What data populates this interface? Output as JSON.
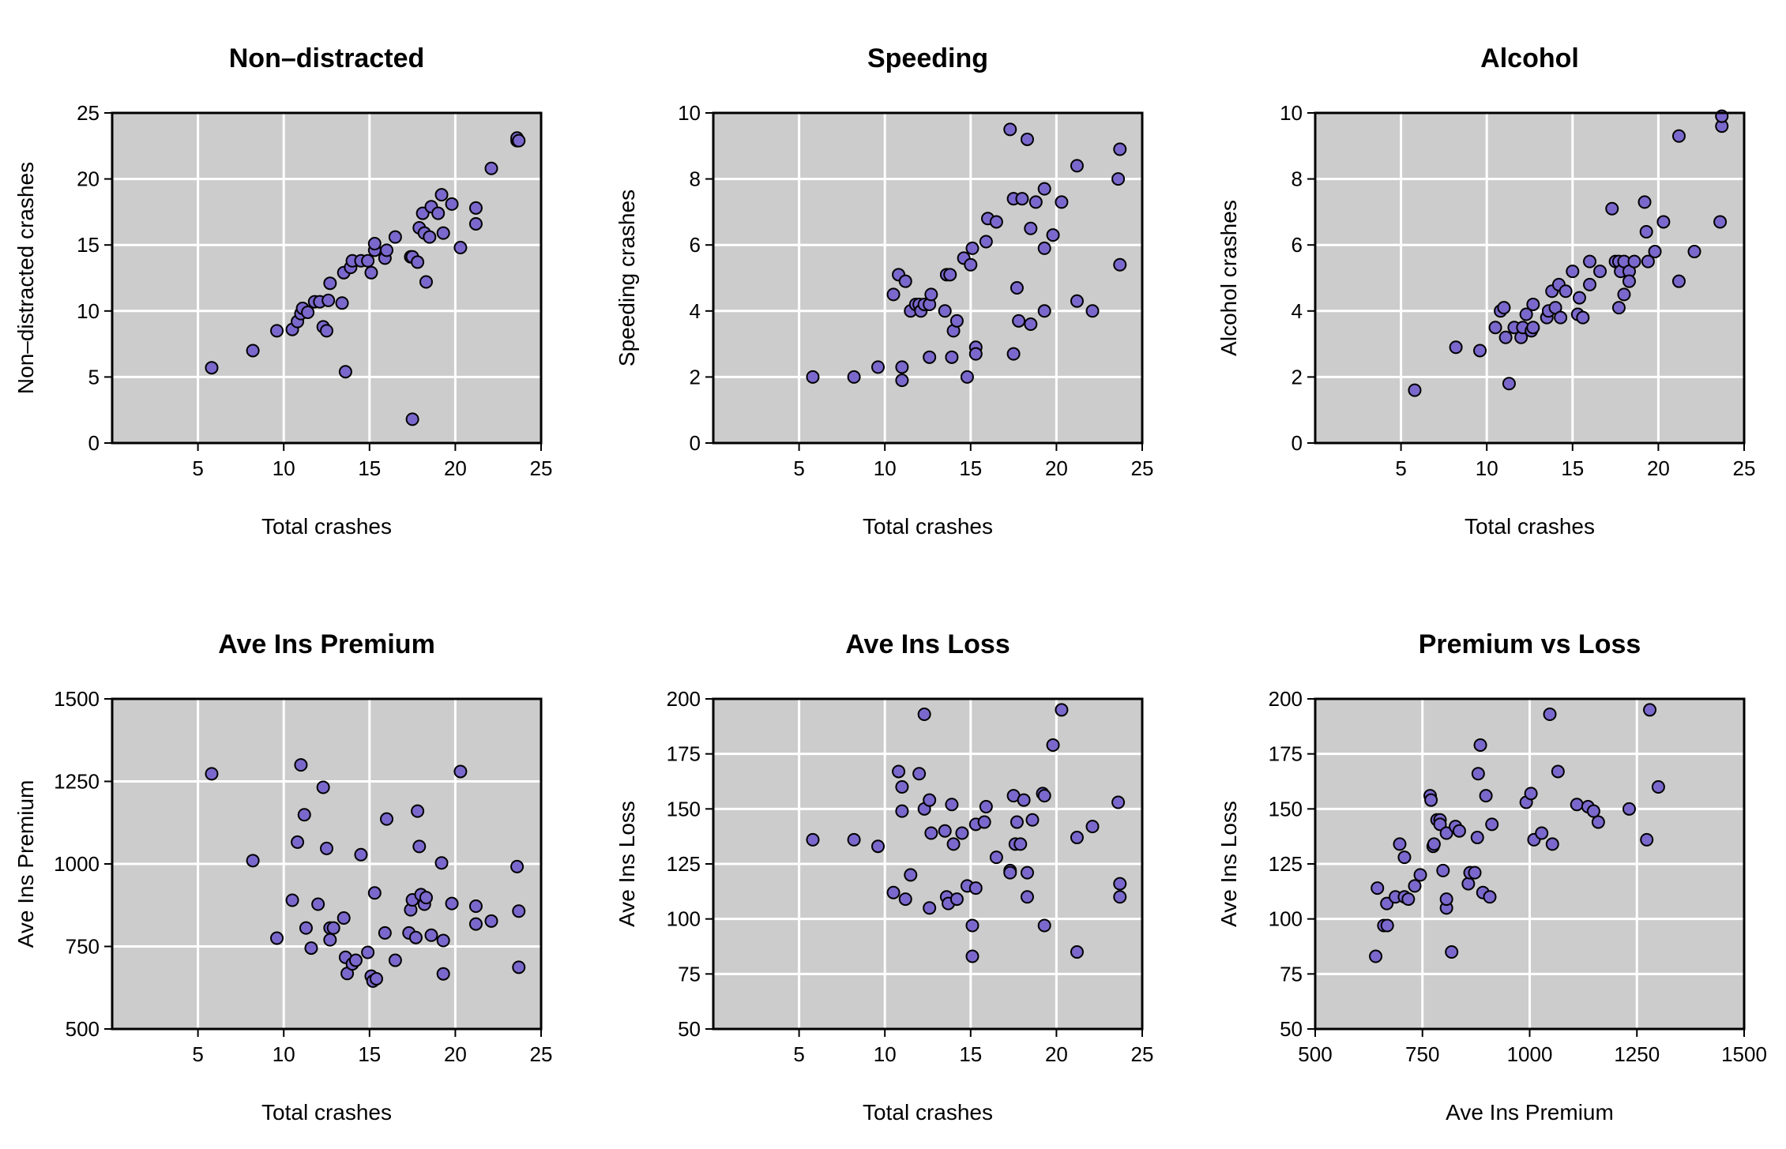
{
  "chart_data": [
    {
      "type": "scatter",
      "title": "Non–distracted",
      "xlabel": "Total crashes",
      "ylabel": "Non–distracted crashes",
      "xlim": [
        0,
        25
      ],
      "ylim": [
        0,
        25
      ],
      "xticks": [
        5,
        10,
        15,
        20,
        25
      ],
      "xtick_labels": [
        "5",
        "10",
        "15",
        "20",
        "25"
      ],
      "yticks": [
        0,
        5,
        10,
        15,
        20,
        25
      ],
      "ytick_labels": [
        "0",
        "5",
        "10",
        "15",
        "20",
        "25"
      ],
      "background": "#cccccc",
      "grid": true,
      "point_color": "#7b68cc",
      "points": [
        [
          5.8,
          5.7
        ],
        [
          8.2,
          7.0
        ],
        [
          9.6,
          8.5
        ],
        [
          10.5,
          8.6
        ],
        [
          10.8,
          9.2
        ],
        [
          11.0,
          9.8
        ],
        [
          11.1,
          10.2
        ],
        [
          11.4,
          9.9
        ],
        [
          11.8,
          10.7
        ],
        [
          12.1,
          10.7
        ],
        [
          12.3,
          8.8
        ],
        [
          12.5,
          8.5
        ],
        [
          12.6,
          10.8
        ],
        [
          12.7,
          12.1
        ],
        [
          13.4,
          10.6
        ],
        [
          13.5,
          12.9
        ],
        [
          13.6,
          5.4
        ],
        [
          13.9,
          13.3
        ],
        [
          14.0,
          13.8
        ],
        [
          14.5,
          13.8
        ],
        [
          14.9,
          13.8
        ],
        [
          15.1,
          12.9
        ],
        [
          15.3,
          14.6
        ],
        [
          15.3,
          15.1
        ],
        [
          15.9,
          14.0
        ],
        [
          16.0,
          14.6
        ],
        [
          16.5,
          15.6
        ],
        [
          17.4,
          14.1
        ],
        [
          17.5,
          14.1
        ],
        [
          17.5,
          1.8
        ],
        [
          17.8,
          13.7
        ],
        [
          17.9,
          16.3
        ],
        [
          18.1,
          17.4
        ],
        [
          18.2,
          15.9
        ],
        [
          18.3,
          12.2
        ],
        [
          18.5,
          15.6
        ],
        [
          18.6,
          17.9
        ],
        [
          19.0,
          17.4
        ],
        [
          19.2,
          18.8
        ],
        [
          19.3,
          15.9
        ],
        [
          19.8,
          18.1
        ],
        [
          20.3,
          14.8
        ],
        [
          21.2,
          16.6
        ],
        [
          21.2,
          17.8
        ],
        [
          22.1,
          20.8
        ],
        [
          23.6,
          22.9
        ],
        [
          23.6,
          23.1
        ],
        [
          23.7,
          22.9
        ]
      ]
    },
    {
      "type": "scatter",
      "title": "Speeding",
      "xlabel": "Total crashes",
      "ylabel": "Speeding crashes",
      "xlim": [
        0,
        25
      ],
      "ylim": [
        0,
        10
      ],
      "xticks": [
        5,
        10,
        15,
        20,
        25
      ],
      "xtick_labels": [
        "5",
        "10",
        "15",
        "20",
        "25"
      ],
      "yticks": [
        0,
        2,
        4,
        6,
        8,
        10
      ],
      "ytick_labels": [
        "0",
        "2",
        "4",
        "6",
        "8",
        "10"
      ],
      "background": "#cccccc",
      "grid": true,
      "point_color": "#7b68cc",
      "points": [
        [
          5.8,
          2.0
        ],
        [
          8.2,
          2.0
        ],
        [
          9.6,
          2.3
        ],
        [
          10.5,
          4.5
        ],
        [
          10.8,
          5.1
        ],
        [
          11.0,
          1.9
        ],
        [
          11.0,
          2.3
        ],
        [
          11.2,
          4.9
        ],
        [
          11.5,
          4.0
        ],
        [
          11.8,
          4.2
        ],
        [
          12.0,
          4.2
        ],
        [
          12.1,
          4.0
        ],
        [
          12.3,
          4.2
        ],
        [
          12.6,
          4.2
        ],
        [
          12.6,
          2.6
        ],
        [
          12.7,
          4.5
        ],
        [
          13.5,
          4.0
        ],
        [
          13.6,
          5.1
        ],
        [
          13.8,
          5.1
        ],
        [
          13.9,
          2.6
        ],
        [
          14.0,
          3.4
        ],
        [
          14.2,
          3.7
        ],
        [
          14.6,
          5.6
        ],
        [
          14.8,
          2.0
        ],
        [
          15.0,
          5.4
        ],
        [
          15.1,
          5.9
        ],
        [
          15.3,
          2.9
        ],
        [
          15.3,
          2.7
        ],
        [
          15.9,
          6.1
        ],
        [
          16.0,
          6.8
        ],
        [
          16.5,
          6.7
        ],
        [
          17.3,
          9.5
        ],
        [
          17.5,
          7.4
        ],
        [
          17.5,
          2.7
        ],
        [
          17.7,
          4.7
        ],
        [
          17.8,
          3.7
        ],
        [
          18.0,
          7.4
        ],
        [
          18.3,
          9.2
        ],
        [
          18.5,
          6.5
        ],
        [
          18.5,
          3.6
        ],
        [
          18.8,
          7.3
        ],
        [
          19.3,
          5.9
        ],
        [
          19.3,
          4.0
        ],
        [
          19.3,
          7.7
        ],
        [
          19.8,
          6.3
        ],
        [
          20.3,
          7.3
        ],
        [
          21.2,
          8.4
        ],
        [
          21.2,
          4.3
        ],
        [
          22.1,
          4.0
        ],
        [
          23.6,
          8.0
        ],
        [
          23.7,
          8.9
        ],
        [
          23.7,
          5.4
        ]
      ]
    },
    {
      "type": "scatter",
      "title": "Alcohol",
      "xlabel": "Total crashes",
      "ylabel": "Alcohol crashes",
      "xlim": [
        0,
        25
      ],
      "ylim": [
        0,
        10
      ],
      "xticks": [
        5,
        10,
        15,
        20,
        25
      ],
      "xtick_labels": [
        "5",
        "10",
        "15",
        "20",
        "25"
      ],
      "yticks": [
        0,
        2,
        4,
        6,
        8,
        10
      ],
      "ytick_labels": [
        "0",
        "2",
        "4",
        "6",
        "8",
        "10"
      ],
      "background": "#cccccc",
      "grid": true,
      "point_color": "#7b68cc",
      "points": [
        [
          5.8,
          1.6
        ],
        [
          8.2,
          2.9
        ],
        [
          9.6,
          2.8
        ],
        [
          10.5,
          3.5
        ],
        [
          10.8,
          4.0
        ],
        [
          11.0,
          4.1
        ],
        [
          11.1,
          3.2
        ],
        [
          11.3,
          1.8
        ],
        [
          11.6,
          3.5
        ],
        [
          12.0,
          3.2
        ],
        [
          12.1,
          3.5
        ],
        [
          12.3,
          3.9
        ],
        [
          12.6,
          3.4
        ],
        [
          12.7,
          4.2
        ],
        [
          12.7,
          3.5
        ],
        [
          13.5,
          3.8
        ],
        [
          13.6,
          4.0
        ],
        [
          13.8,
          4.6
        ],
        [
          14.0,
          4.1
        ],
        [
          14.2,
          4.8
        ],
        [
          14.3,
          3.8
        ],
        [
          14.6,
          4.6
        ],
        [
          15.0,
          5.2
        ],
        [
          15.3,
          3.9
        ],
        [
          15.4,
          4.4
        ],
        [
          15.6,
          3.8
        ],
        [
          16.0,
          5.5
        ],
        [
          16.0,
          4.8
        ],
        [
          16.6,
          5.2
        ],
        [
          17.3,
          7.1
        ],
        [
          17.5,
          5.5
        ],
        [
          17.7,
          5.5
        ],
        [
          17.7,
          4.1
        ],
        [
          17.8,
          5.2
        ],
        [
          18.0,
          4.5
        ],
        [
          18.0,
          5.5
        ],
        [
          18.3,
          5.2
        ],
        [
          18.3,
          4.9
        ],
        [
          18.6,
          5.5
        ],
        [
          19.2,
          7.3
        ],
        [
          19.3,
          6.4
        ],
        [
          19.4,
          5.5
        ],
        [
          19.8,
          5.8
        ],
        [
          20.3,
          6.7
        ],
        [
          21.2,
          9.3
        ],
        [
          21.2,
          4.9
        ],
        [
          22.1,
          5.8
        ],
        [
          23.6,
          6.7
        ],
        [
          23.7,
          9.6
        ],
        [
          23.7,
          9.9
        ]
      ]
    },
    {
      "type": "scatter",
      "title": "Ave Ins Premium",
      "xlabel": "Total crashes",
      "ylabel": "Ave Ins Premium",
      "xlim": [
        0,
        25
      ],
      "ylim": [
        500,
        1500
      ],
      "xticks": [
        5,
        10,
        15,
        20,
        25
      ],
      "xtick_labels": [
        "5",
        "10",
        "15",
        "20",
        "25"
      ],
      "yticks": [
        500,
        750,
        1000,
        1250,
        1500
      ],
      "ytick_labels": [
        "500",
        "750",
        "1000",
        "1250",
        "1500"
      ],
      "background": "#cccccc",
      "grid": true,
      "point_color": "#7b68cc",
      "points": [
        [
          5.8,
          1273
        ],
        [
          8.2,
          1010
        ],
        [
          9.6,
          775
        ],
        [
          10.5,
          890
        ],
        [
          10.8,
          1066
        ],
        [
          11.0,
          1300
        ],
        [
          11.2,
          1149
        ],
        [
          11.3,
          806
        ],
        [
          11.6,
          745
        ],
        [
          12.0,
          878
        ],
        [
          12.3,
          1232
        ],
        [
          12.5,
          1047
        ],
        [
          12.7,
          806
        ],
        [
          12.7,
          770
        ],
        [
          12.9,
          806
        ],
        [
          13.5,
          836
        ],
        [
          13.6,
          717
        ],
        [
          13.7,
          668
        ],
        [
          14.0,
          697
        ],
        [
          14.2,
          708
        ],
        [
          14.5,
          1028
        ],
        [
          14.9,
          732
        ],
        [
          15.1,
          660
        ],
        [
          15.2,
          645
        ],
        [
          15.3,
          912
        ],
        [
          15.4,
          652
        ],
        [
          15.9,
          791
        ],
        [
          16.0,
          1136
        ],
        [
          16.5,
          708
        ],
        [
          17.3,
          791
        ],
        [
          17.4,
          861
        ],
        [
          17.5,
          891
        ],
        [
          17.7,
          777
        ],
        [
          17.8,
          1160
        ],
        [
          17.9,
          1053
        ],
        [
          18.0,
          907
        ],
        [
          18.2,
          878
        ],
        [
          18.3,
          898
        ],
        [
          18.6,
          784
        ],
        [
          19.2,
          1003
        ],
        [
          19.3,
          667
        ],
        [
          19.3,
          768
        ],
        [
          19.8,
          880
        ],
        [
          20.3,
          1280
        ],
        [
          21.2,
          818
        ],
        [
          21.2,
          872
        ],
        [
          22.1,
          827
        ],
        [
          23.6,
          992
        ],
        [
          23.7,
          687
        ],
        [
          23.7,
          857
        ]
      ]
    },
    {
      "type": "scatter",
      "title": "Ave Ins Loss",
      "xlabel": "Total crashes",
      "ylabel": "Ave Ins Loss",
      "xlim": [
        0,
        25
      ],
      "ylim": [
        50,
        200
      ],
      "xticks": [
        5,
        10,
        15,
        20,
        25
      ],
      "xtick_labels": [
        "5",
        "10",
        "15",
        "20",
        "25"
      ],
      "yticks": [
        50,
        75,
        100,
        125,
        150,
        175,
        200
      ],
      "ytick_labels": [
        "50",
        "75",
        "100",
        "125",
        "150",
        "175",
        "200"
      ],
      "background": "#cccccc",
      "grid": true,
      "point_color": "#7b68cc",
      "points": [
        [
          5.8,
          136
        ],
        [
          8.2,
          136
        ],
        [
          9.6,
          133
        ],
        [
          10.5,
          112
        ],
        [
          10.8,
          167
        ],
        [
          11.0,
          160
        ],
        [
          11.0,
          149
        ],
        [
          11.2,
          109
        ],
        [
          11.5,
          120
        ],
        [
          12.0,
          166
        ],
        [
          12.3,
          150
        ],
        [
          12.3,
          193
        ],
        [
          12.6,
          154
        ],
        [
          12.6,
          105
        ],
        [
          12.7,
          139
        ],
        [
          13.5,
          140
        ],
        [
          13.6,
          110
        ],
        [
          13.7,
          107
        ],
        [
          13.9,
          152
        ],
        [
          14.0,
          134
        ],
        [
          14.2,
          109
        ],
        [
          14.5,
          139
        ],
        [
          14.8,
          115
        ],
        [
          15.1,
          97
        ],
        [
          15.1,
          83
        ],
        [
          15.3,
          143
        ],
        [
          15.3,
          114
        ],
        [
          15.8,
          144
        ],
        [
          15.9,
          151
        ],
        [
          16.5,
          128
        ],
        [
          17.3,
          122
        ],
        [
          17.3,
          121
        ],
        [
          17.5,
          156
        ],
        [
          17.6,
          134
        ],
        [
          17.7,
          144
        ],
        [
          17.9,
          134
        ],
        [
          18.1,
          154
        ],
        [
          18.3,
          110
        ],
        [
          18.3,
          121
        ],
        [
          18.6,
          145
        ],
        [
          19.2,
          157
        ],
        [
          19.3,
          97
        ],
        [
          19.3,
          156
        ],
        [
          19.8,
          179
        ],
        [
          20.3,
          195
        ],
        [
          21.2,
          85
        ],
        [
          21.2,
          137
        ],
        [
          22.1,
          142
        ],
        [
          23.6,
          153
        ],
        [
          23.7,
          116
        ],
        [
          23.7,
          110
        ]
      ]
    },
    {
      "type": "scatter",
      "title": "Premium vs Loss",
      "xlabel": "Ave Ins Premium",
      "ylabel": "Ave Ins Loss",
      "xlim": [
        500,
        1500
      ],
      "ylim": [
        50,
        200
      ],
      "xticks": [
        500,
        750,
        1000,
        1250,
        1500
      ],
      "xtick_labels": [
        "500",
        "750",
        "1000",
        "1250",
        "1500"
      ],
      "yticks": [
        50,
        75,
        100,
        125,
        150,
        175,
        200
      ],
      "ytick_labels": [
        "50",
        "75",
        "100",
        "125",
        "150",
        "175",
        "200"
      ],
      "background": "#cccccc",
      "grid": true,
      "point_color": "#7b68cc",
      "points": [
        [
          641,
          83
        ],
        [
          645,
          114
        ],
        [
          660,
          97
        ],
        [
          667,
          107
        ],
        [
          668,
          97
        ],
        [
          687,
          110
        ],
        [
          697,
          134
        ],
        [
          708,
          128
        ],
        [
          708,
          110
        ],
        [
          717,
          109
        ],
        [
          732,
          115
        ],
        [
          745,
          120
        ],
        [
          768,
          156
        ],
        [
          770,
          154
        ],
        [
          775,
          133
        ],
        [
          777,
          134
        ],
        [
          784,
          145
        ],
        [
          791,
          145
        ],
        [
          791,
          143
        ],
        [
          798,
          122
        ],
        [
          806,
          139
        ],
        [
          806,
          105
        ],
        [
          806,
          109
        ],
        [
          818,
          85
        ],
        [
          827,
          142
        ],
        [
          836,
          140
        ],
        [
          857,
          116
        ],
        [
          861,
          121
        ],
        [
          872,
          121
        ],
        [
          878,
          137
        ],
        [
          880,
          166
        ],
        [
          885,
          179
        ],
        [
          891,
          112
        ],
        [
          898,
          156
        ],
        [
          907,
          110
        ],
        [
          912,
          143
        ],
        [
          992,
          153
        ],
        [
          1003,
          157
        ],
        [
          1010,
          136
        ],
        [
          1028,
          139
        ],
        [
          1047,
          193
        ],
        [
          1053,
          134
        ],
        [
          1066,
          167
        ],
        [
          1110,
          152
        ],
        [
          1136,
          151
        ],
        [
          1149,
          149
        ],
        [
          1160,
          144
        ],
        [
          1232,
          150
        ],
        [
          1273,
          136
        ],
        [
          1280,
          195
        ],
        [
          1300,
          160
        ]
      ]
    }
  ]
}
